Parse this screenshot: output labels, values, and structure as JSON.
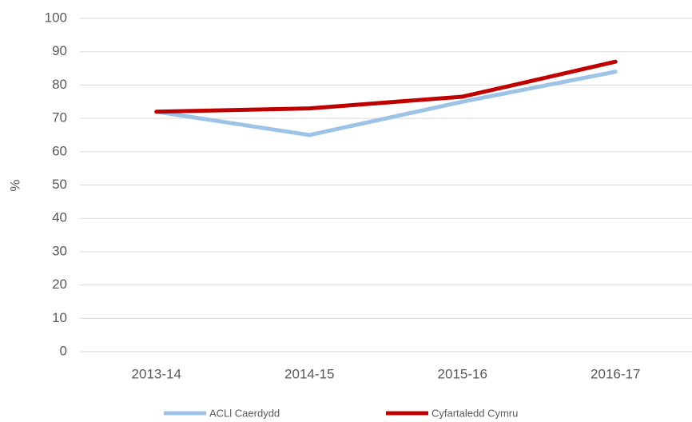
{
  "chart_data": {
    "type": "line",
    "categories": [
      "2013-14",
      "2014-15",
      "2015-16",
      "2016-17"
    ],
    "series": [
      {
        "name": "ACLl Caerdydd",
        "color": "#9dc3e6",
        "values": [
          72,
          65,
          75,
          84
        ]
      },
      {
        "name": "Cyfartaledd Cymru",
        "color": "#c00000",
        "values": [
          72,
          73,
          76.5,
          87
        ]
      }
    ],
    "y_label": "%",
    "ylim": [
      0,
      100
    ],
    "yticks": [
      0,
      10,
      20,
      30,
      40,
      50,
      60,
      70,
      80,
      90,
      100
    ],
    "grid": true,
    "legend": "bottom"
  }
}
